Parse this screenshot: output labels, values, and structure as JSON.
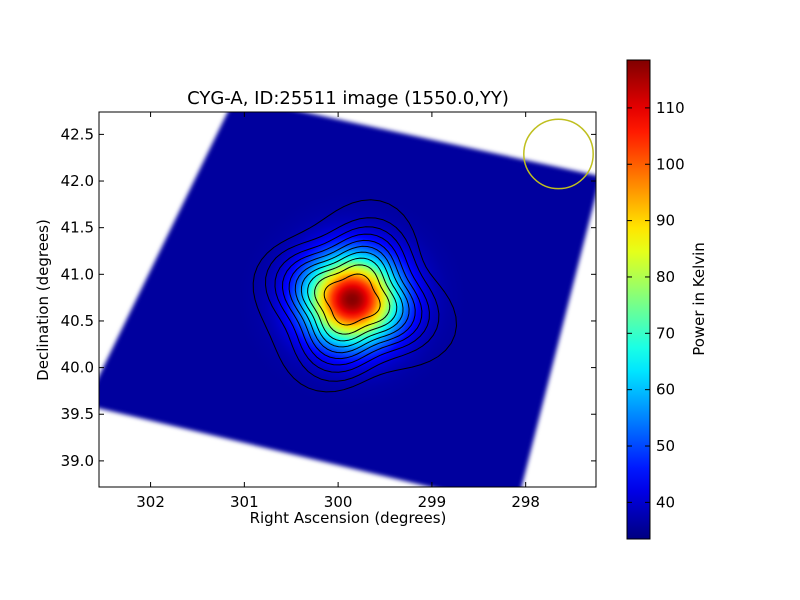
{
  "chart_data": {
    "type": "heatmap",
    "title": "CYG-A, ID:25511 image (1550.0,YY)",
    "xlabel": "Right Ascension (degrees)",
    "ylabel": "Declination (degrees)",
    "x_axis": {
      "range": [
        302.55,
        297.25
      ],
      "inverted": true,
      "ticks": [
        302,
        301,
        300,
        299,
        298
      ],
      "tick_labels": [
        "302",
        "301",
        "300",
        "299",
        "298"
      ]
    },
    "y_axis": {
      "range": [
        38.72,
        42.74
      ],
      "ticks": [
        39.0,
        39.5,
        40.0,
        40.5,
        41.0,
        41.5,
        42.0,
        42.5
      ],
      "tick_labels": [
        "39.0",
        "39.5",
        "40.0",
        "40.5",
        "41.0",
        "41.5",
        "42.0",
        "42.5"
      ]
    },
    "colorbar": {
      "label": "Power in Kelvin",
      "range": [
        33.5,
        118.5
      ],
      "ticks": [
        40,
        50,
        60,
        70,
        80,
        90,
        100,
        110
      ],
      "tick_labels": [
        "40",
        "50",
        "60",
        "70",
        "80",
        "90",
        "100",
        "110"
      ],
      "colormap": "jet"
    },
    "source": {
      "ra": 299.85,
      "dec": 40.73,
      "peak_kelvin": 118
    },
    "background_kelvin": 36,
    "contour_levels_kelvin": [
      42,
      50,
      58,
      66,
      74,
      82,
      90,
      98,
      106,
      114
    ],
    "contour_color": "#000000",
    "beam_marker": {
      "ra": 297.65,
      "dec": 42.29,
      "radius_deg": 0.37,
      "color": "#bfbf1f"
    },
    "grid": false
  }
}
